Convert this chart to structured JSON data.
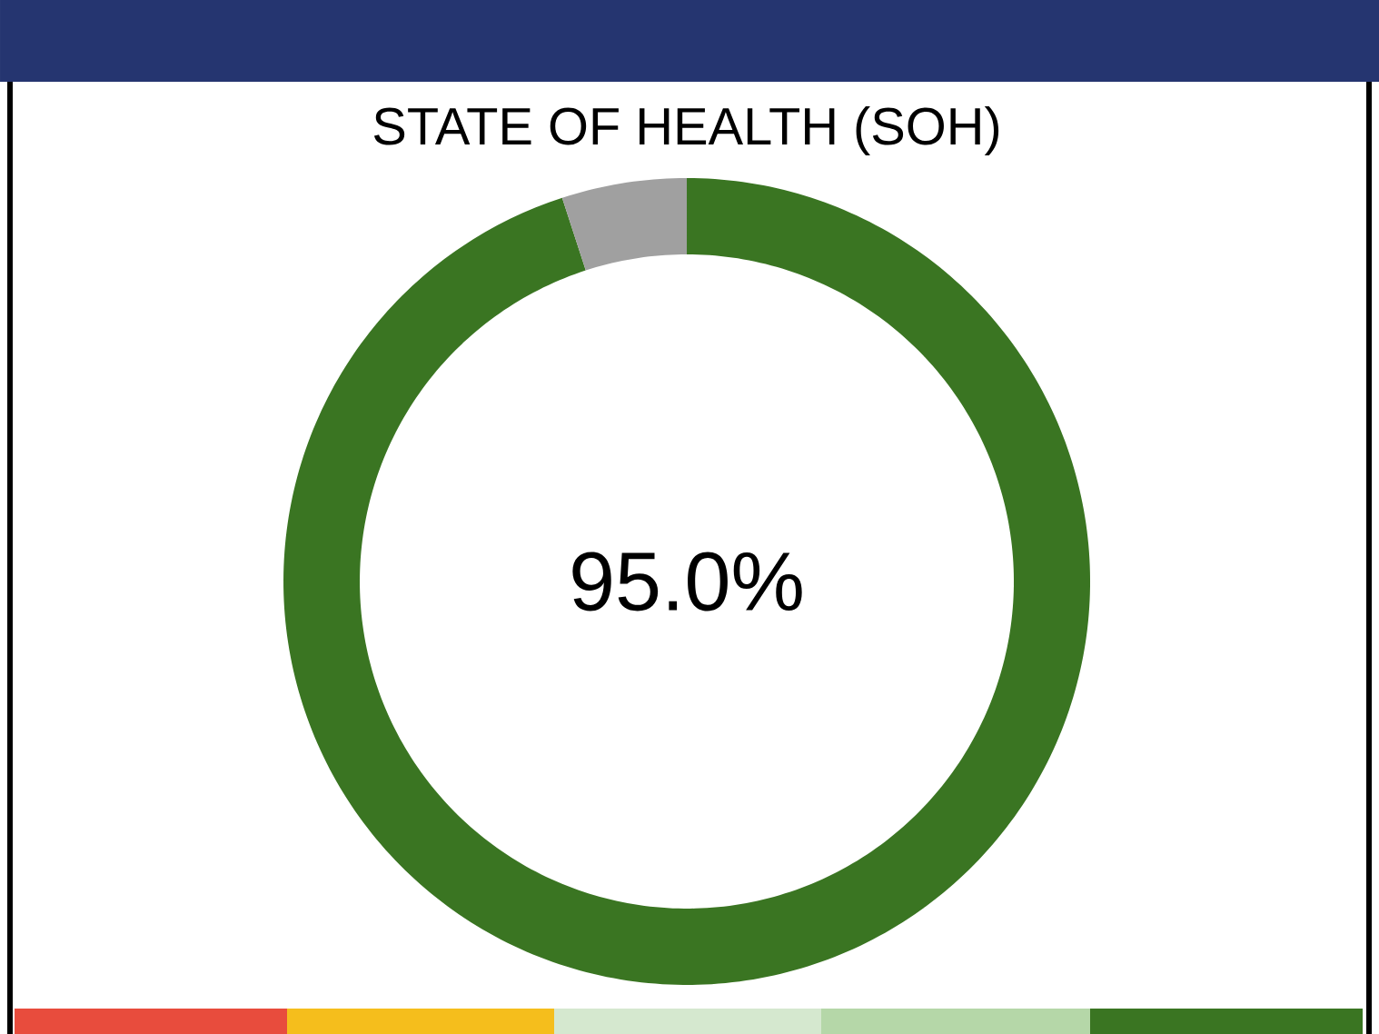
{
  "chart_data": {
    "type": "donut",
    "title": "STATE OF HEALTH (SOH)",
    "categories": [
      null,
      null
    ],
    "values": [
      95.0,
      5.0
    ],
    "colors": [
      "#3a7522",
      "#a0a0a0"
    ],
    "value_labels": [
      "95.0%",
      null
    ]
  }
}
